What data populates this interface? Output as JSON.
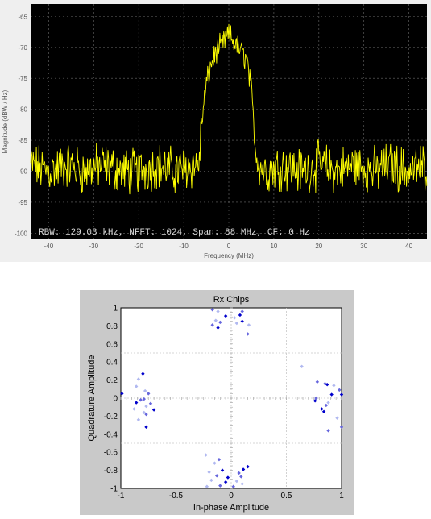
{
  "chart_data": [
    {
      "type": "line",
      "title": "",
      "xlabel": "Frequency (MHz)",
      "ylabel": "Magnitude (dBW / Hz)",
      "xlim": [
        -44,
        44
      ],
      "ylim": [
        -101,
        -63
      ],
      "xticks": [
        "-40",
        "-30",
        "-20",
        "-10",
        "0",
        "10",
        "20",
        "30",
        "40"
      ],
      "yticks": [
        "-65",
        "-70",
        "-75",
        "-80",
        "-85",
        "-90",
        "-95",
        "-100"
      ],
      "annotation": "RBW: 129.03 kHz, NFFT: 1024, Span: 88 MHz, CF: 0 Hz",
      "grid": true,
      "background": "#000000",
      "line_color": "#ffff00",
      "series": [
        {
          "x": [
            -44,
            -40,
            -36,
            -32,
            -28,
            -24,
            -20,
            -16,
            -12,
            -8,
            -7,
            -6.5,
            -6,
            -5,
            -4,
            -3,
            -2,
            -1,
            0,
            1,
            2,
            3,
            4,
            5,
            5.5,
            6,
            7,
            8,
            12,
            16,
            20,
            24,
            28,
            32,
            36,
            40,
            44
          ],
          "y": [
            -89,
            -90,
            -89,
            -90,
            -89,
            -90,
            -90,
            -89,
            -90,
            -89,
            -89,
            -88,
            -82,
            -76,
            -73,
            -71,
            -70,
            -69,
            -68,
            -69,
            -70,
            -71,
            -72,
            -77,
            -82,
            -87,
            -89,
            -90,
            -89,
            -90,
            -89,
            -90,
            -89,
            -90,
            -89,
            -90,
            -89
          ]
        }
      ]
    },
    {
      "type": "scatter",
      "title": "Rx Chips",
      "xlabel": "In-phase Amplitude",
      "ylabel": "Quadrature Amplitude",
      "xlim": [
        -1,
        1
      ],
      "ylim": [
        -1,
        1
      ],
      "xticks": [
        "-1",
        "-0.5",
        "0",
        "0.5",
        "1"
      ],
      "yticks": [
        "1",
        "0.8",
        "0.6",
        "0.4",
        "0.2",
        "0",
        "-0.2",
        "-0.4",
        "-0.6",
        "-0.8",
        "-1"
      ],
      "grid": true,
      "colors": [
        "#0000cc",
        "#6666dd",
        "#b0b8f0"
      ],
      "points": [
        {
          "x": -0.8,
          "y": 0.27,
          "c": 0
        },
        {
          "x": -0.84,
          "y": 0.21,
          "c": 2
        },
        {
          "x": -0.99,
          "y": 0.05,
          "c": 0
        },
        {
          "x": -0.86,
          "y": 0.13,
          "c": 2
        },
        {
          "x": -0.78,
          "y": 0.08,
          "c": 2
        },
        {
          "x": -0.75,
          "y": 0.05,
          "c": 1
        },
        {
          "x": -0.79,
          "y": -0.01,
          "c": 1
        },
        {
          "x": -0.82,
          "y": -0.02,
          "c": 1
        },
        {
          "x": -0.86,
          "y": -0.05,
          "c": 0
        },
        {
          "x": -0.73,
          "y": -0.06,
          "c": 1
        },
        {
          "x": -0.77,
          "y": -0.09,
          "c": 2
        },
        {
          "x": -0.7,
          "y": -0.13,
          "c": 0
        },
        {
          "x": -0.79,
          "y": -0.16,
          "c": 2
        },
        {
          "x": -0.84,
          "y": -0.24,
          "c": 2
        },
        {
          "x": -0.77,
          "y": -0.32,
          "c": 0
        },
        {
          "x": -0.77,
          "y": -0.18,
          "c": 1
        },
        {
          "x": -0.88,
          "y": -0.12,
          "c": 2
        },
        {
          "x": 0.64,
          "y": 0.35,
          "c": 2
        },
        {
          "x": 0.78,
          "y": 0.18,
          "c": 1
        },
        {
          "x": 0.85,
          "y": 0.16,
          "c": 1
        },
        {
          "x": 0.87,
          "y": 0.15,
          "c": 0
        },
        {
          "x": 0.93,
          "y": 0.14,
          "c": 2
        },
        {
          "x": 0.98,
          "y": 0.09,
          "c": 1
        },
        {
          "x": 0.91,
          "y": 0.04,
          "c": 0
        },
        {
          "x": 1.0,
          "y": 0.04,
          "c": 0
        },
        {
          "x": 0.77,
          "y": 0.0,
          "c": 1
        },
        {
          "x": 0.76,
          "y": -0.03,
          "c": 0
        },
        {
          "x": 0.88,
          "y": -0.05,
          "c": 2
        },
        {
          "x": 0.86,
          "y": -0.08,
          "c": 1
        },
        {
          "x": 0.82,
          "y": -0.12,
          "c": 0
        },
        {
          "x": 0.84,
          "y": -0.15,
          "c": 0
        },
        {
          "x": 0.96,
          "y": -0.22,
          "c": 2
        },
        {
          "x": 1.0,
          "y": -0.32,
          "c": 1
        },
        {
          "x": 0.88,
          "y": -0.36,
          "c": 1
        },
        {
          "x": -0.17,
          "y": 0.98,
          "c": 1
        },
        {
          "x": -0.12,
          "y": 0.96,
          "c": 2
        },
        {
          "x": -0.05,
          "y": 0.91,
          "c": 0
        },
        {
          "x": 0.03,
          "y": 0.89,
          "c": 2
        },
        {
          "x": 0.1,
          "y": 0.96,
          "c": 1
        },
        {
          "x": 0.08,
          "y": 0.92,
          "c": 0
        },
        {
          "x": -0.14,
          "y": 0.86,
          "c": 2
        },
        {
          "x": -0.1,
          "y": 0.84,
          "c": 1
        },
        {
          "x": -0.17,
          "y": 0.81,
          "c": 1
        },
        {
          "x": -0.12,
          "y": 0.78,
          "c": 0
        },
        {
          "x": 0.05,
          "y": 0.83,
          "c": 2
        },
        {
          "x": 0.1,
          "y": 0.85,
          "c": 0
        },
        {
          "x": 0.16,
          "y": 0.81,
          "c": 2
        },
        {
          "x": 0.15,
          "y": 0.71,
          "c": 1
        },
        {
          "x": -0.23,
          "y": -0.63,
          "c": 2
        },
        {
          "x": -0.11,
          "y": -0.68,
          "c": 1
        },
        {
          "x": -0.15,
          "y": -0.72,
          "c": 2
        },
        {
          "x": -0.2,
          "y": -0.82,
          "c": 2
        },
        {
          "x": -0.13,
          "y": -0.86,
          "c": 1
        },
        {
          "x": -0.18,
          "y": -0.91,
          "c": 2
        },
        {
          "x": -0.1,
          "y": -0.97,
          "c": 1
        },
        {
          "x": -0.22,
          "y": -0.98,
          "c": 2
        },
        {
          "x": -0.03,
          "y": -0.88,
          "c": 0
        },
        {
          "x": -0.05,
          "y": -0.93,
          "c": 0
        },
        {
          "x": 0.02,
          "y": -0.98,
          "c": 1
        },
        {
          "x": 0.1,
          "y": -0.95,
          "c": 2
        },
        {
          "x": 0.15,
          "y": -0.76,
          "c": 0
        },
        {
          "x": 0.11,
          "y": -0.79,
          "c": 0
        },
        {
          "x": 0.07,
          "y": -0.83,
          "c": 1
        },
        {
          "x": 0.09,
          "y": -0.87,
          "c": 1
        },
        {
          "x": 0.05,
          "y": -0.92,
          "c": 2
        },
        {
          "x": -0.08,
          "y": -0.8,
          "c": 0
        }
      ]
    }
  ]
}
